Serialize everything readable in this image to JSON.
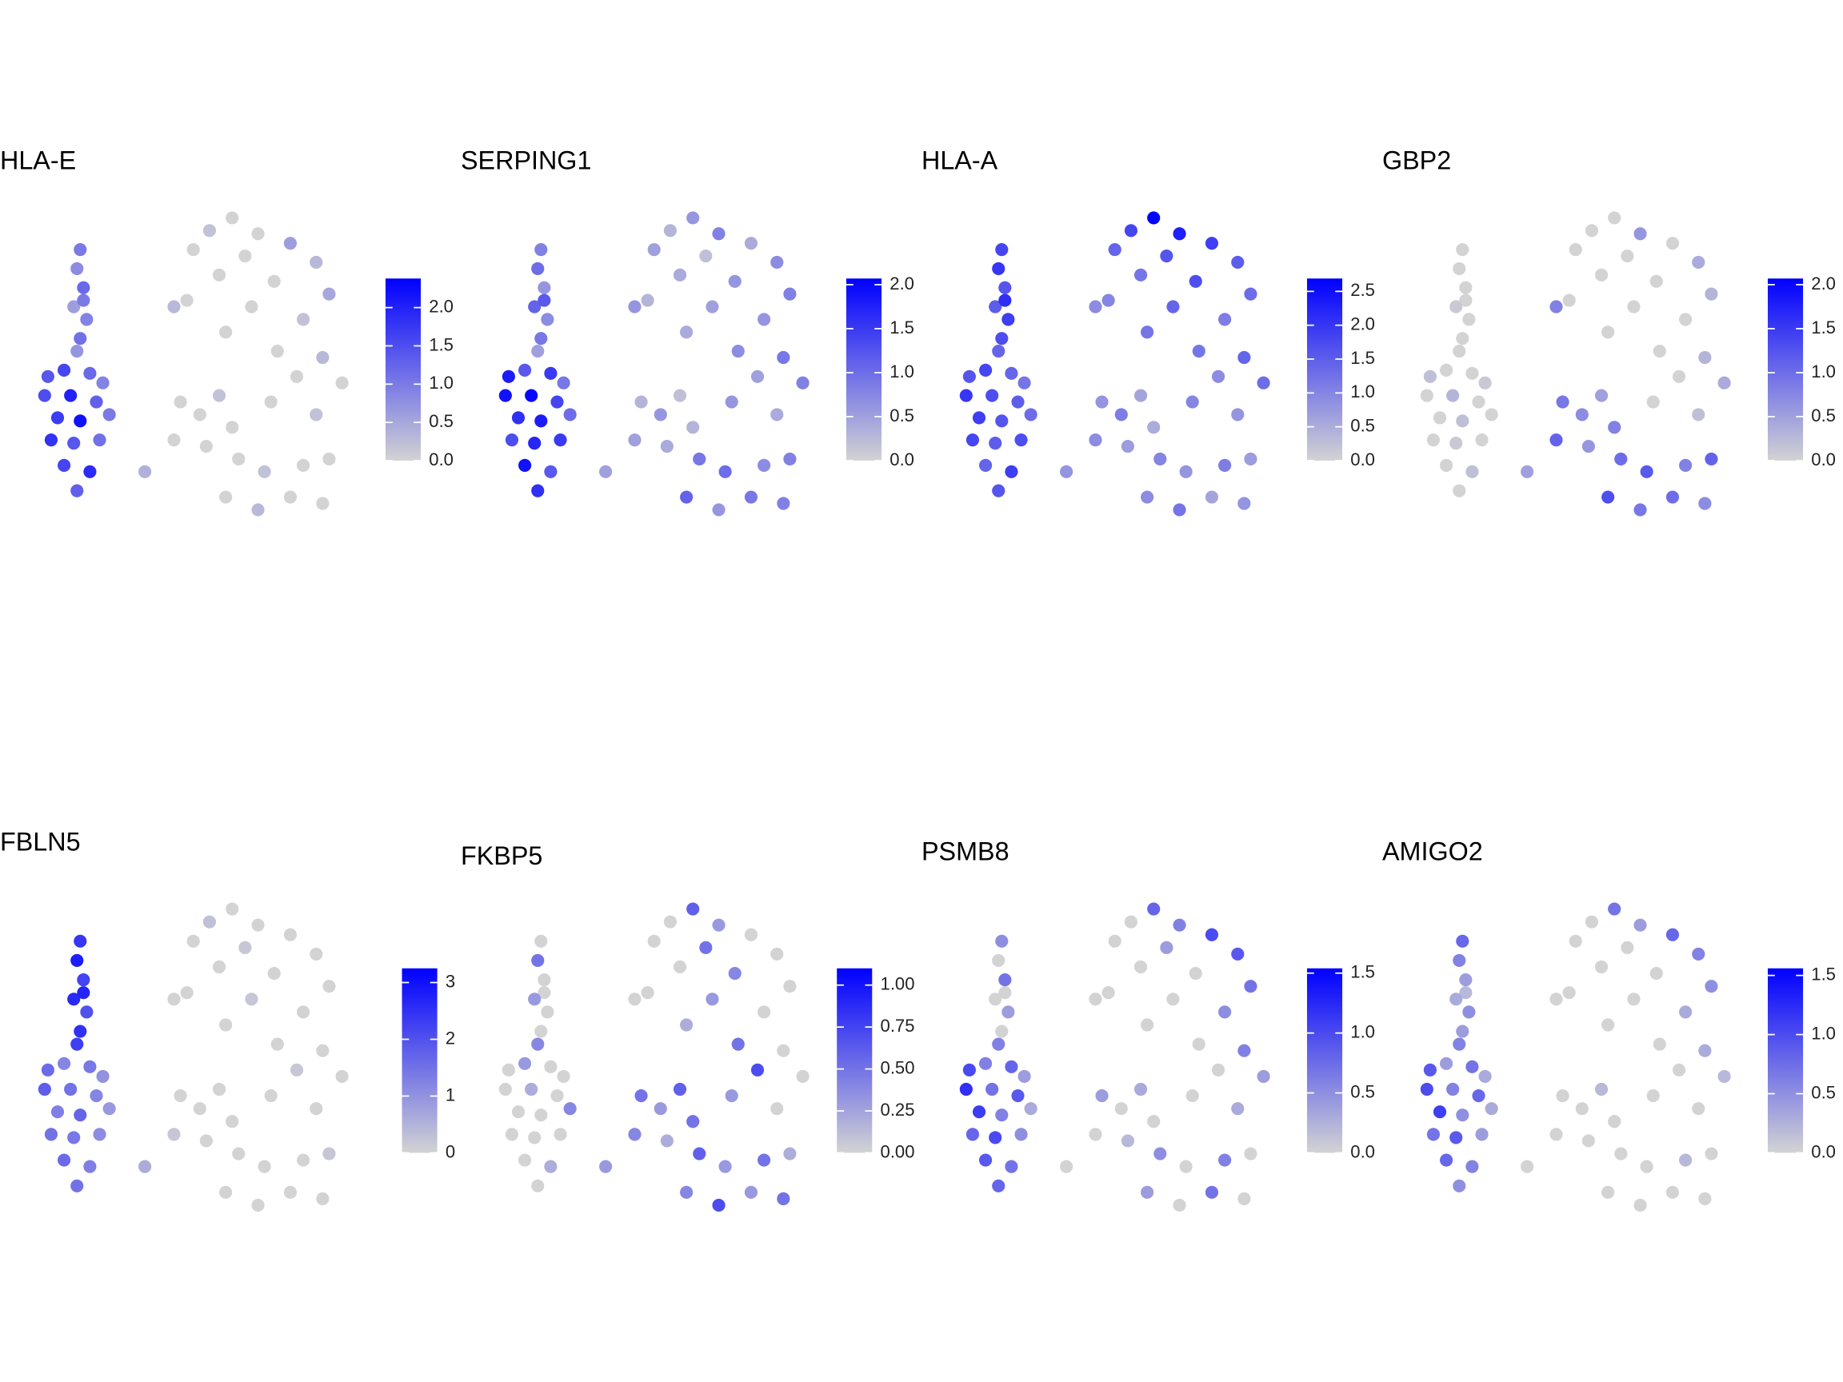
{
  "cells": {
    "x": [
      15,
      14,
      16,
      13,
      17,
      15,
      14,
      16,
      5,
      10,
      18,
      22,
      4,
      12,
      20,
      8,
      15,
      24,
      6,
      13,
      21,
      10,
      18,
      14,
      35,
      44,
      62,
      55,
      70,
      80,
      50,
      66,
      88,
      58,
      75,
      92,
      48,
      68,
      84,
      60,
      76,
      90,
      82,
      96,
      74,
      88,
      46,
      52,
      58,
      44,
      54,
      62,
      64,
      72,
      84,
      92,
      60,
      70,
      80,
      90
    ],
    "y": [
      88,
      82,
      76,
      70,
      66,
      60,
      56,
      72,
      48,
      50,
      49,
      46,
      42,
      42,
      40,
      35,
      34,
      36,
      28,
      27,
      28,
      20,
      18,
      12,
      18,
      70,
      98,
      94,
      93,
      90,
      88,
      86,
      84,
      80,
      78,
      74,
      72,
      70,
      66,
      62,
      56,
      54,
      48,
      46,
      40,
      36,
      40,
      36,
      42,
      28,
      26,
      32,
      22,
      18,
      20,
      22,
      10,
      6,
      10,
      8
    ]
  },
  "low_color": "#d3d3d3",
  "high_color": "#0000ff",
  "chart_data": [
    {
      "type": "scatter",
      "title": "HLA-E",
      "colorbar_lim": [
        0,
        2.38
      ],
      "colorbar_ticks": [
        {
          "value": 0,
          "label": "0.0"
        },
        {
          "value": 0.5,
          "label": "0.5"
        },
        {
          "value": 1,
          "label": "1.0"
        },
        {
          "value": 1.5,
          "label": "1.5"
        },
        {
          "value": 2,
          "label": "2.0"
        }
      ],
      "values": [
        1.0,
        0.8,
        1.2,
        0.6,
        0.9,
        1.1,
        0.7,
        1.0,
        1.4,
        1.6,
        1.2,
        0.9,
        1.5,
        2.0,
        1.3,
        1.7,
        2.2,
        1.0,
        1.8,
        1.4,
        1.1,
        1.6,
        1.9,
        1.3,
        0.4,
        0.3,
        0,
        0.2,
        0,
        0.6,
        0,
        0,
        0.3,
        0,
        0,
        0.5,
        0,
        0,
        0.2,
        0,
        0,
        0.3,
        0,
        0,
        0,
        0.2,
        0,
        0,
        0.2,
        0,
        0,
        0,
        0,
        0.2,
        0,
        0,
        0,
        0.3,
        0,
        0
      ]
    },
    {
      "type": "scatter",
      "title": "SERPING1",
      "colorbar_lim": [
        0,
        2.07
      ],
      "colorbar_ticks": [
        {
          "value": 0,
          "label": "0.0"
        },
        {
          "value": 0.5,
          "label": "0.5"
        },
        {
          "value": 1,
          "label": "1.0"
        },
        {
          "value": 1.5,
          "label": "1.5"
        },
        {
          "value": 2,
          "label": "2.0"
        }
      ],
      "values": [
        0.8,
        1.0,
        0.6,
        1.1,
        0.7,
        0.9,
        0.5,
        1.2,
        1.8,
        1.2,
        1.5,
        0.9,
        1.9,
        2.0,
        1.4,
        1.6,
        1.8,
        1.0,
        1.3,
        1.7,
        1.5,
        1.9,
        1.2,
        1.6,
        0.5,
        0.6,
        0.6,
        0.3,
        0.8,
        0.4,
        0.5,
        0.2,
        0.7,
        0.4,
        0.6,
        0.8,
        0.3,
        0.5,
        0.6,
        0.4,
        0.7,
        0.9,
        0.5,
        0.8,
        0.6,
        0.4,
        0.3,
        0.6,
        0.2,
        0.5,
        0.4,
        0.3,
        0.9,
        1.0,
        0.7,
        0.8,
        1.1,
        0.6,
        0.9,
        0.8
      ]
    },
    {
      "type": "scatter",
      "title": "HLA-A",
      "colorbar_lim": [
        0,
        2.69
      ],
      "colorbar_ticks": [
        {
          "value": 0,
          "label": "0.0"
        },
        {
          "value": 0.5,
          "label": "0.5"
        },
        {
          "value": 1,
          "label": "1.0"
        },
        {
          "value": 1.5,
          "label": "1.5"
        },
        {
          "value": 2,
          "label": "2.0"
        },
        {
          "value": 2.5,
          "label": "2.5"
        }
      ],
      "values": [
        1.8,
        2.0,
        1.6,
        1.5,
        1.9,
        1.7,
        1.4,
        2.1,
        1.6,
        1.8,
        1.4,
        1.2,
        2.0,
        1.7,
        1.5,
        1.9,
        1.6,
        1.3,
        1.8,
        1.5,
        1.7,
        1.4,
        1.9,
        1.6,
        0.8,
        0.9,
        2.7,
        1.8,
        2.3,
        1.9,
        1.4,
        1.6,
        1.5,
        1.2,
        1.7,
        1.3,
        1.0,
        1.4,
        1.1,
        1.2,
        1.2,
        1.4,
        0.9,
        1.3,
        1.0,
        0.8,
        0.8,
        1.1,
        0.6,
        0.9,
        0.7,
        0.5,
        1.0,
        0.8,
        1.1,
        0.7,
        0.9,
        1.2,
        0.6,
        0.8
      ]
    },
    {
      "type": "scatter",
      "title": "GBP2",
      "colorbar_lim": [
        0,
        2.07
      ],
      "colorbar_ticks": [
        {
          "value": 0,
          "label": "0.0"
        },
        {
          "value": 0.5,
          "label": "0.5"
        },
        {
          "value": 1,
          "label": "1.0"
        },
        {
          "value": 1.5,
          "label": "1.5"
        },
        {
          "value": 2,
          "label": "2.0"
        }
      ],
      "values": [
        0,
        0,
        0,
        0.1,
        0,
        0,
        0,
        0,
        0.2,
        0,
        0,
        0.1,
        0,
        0.3,
        0,
        0,
        0.2,
        0,
        0,
        0.1,
        0,
        0,
        0.2,
        0,
        0.5,
        0.8,
        0,
        0,
        0.6,
        0,
        0,
        0,
        0.4,
        0,
        0,
        0.3,
        0,
        0,
        0,
        0,
        0,
        0.3,
        0,
        0.4,
        0,
        0.2,
        0.9,
        0.7,
        0.5,
        1.1,
        0.6,
        0.8,
        1.0,
        1.2,
        0.8,
        1.1,
        1.3,
        0.9,
        1.0,
        0.7
      ]
    },
    {
      "type": "scatter",
      "title": "FBLN5",
      "colorbar_lim": [
        0,
        3.25
      ],
      "colorbar_ticks": [
        0,
        1,
        2,
        3
      ],
      "values": [
        2.4,
        2.8,
        2.2,
        2.6,
        2.0,
        2.5,
        2.3,
        2.7,
        1.6,
        1.2,
        1.4,
        1.0,
        1.8,
        1.5,
        1.2,
        1.3,
        1.7,
        0.9,
        1.5,
        1.4,
        1.1,
        1.6,
        1.3,
        1.5,
        0.6,
        0,
        0,
        0.3,
        0,
        0,
        0,
        0.2,
        0,
        0,
        0,
        0,
        0,
        0.2,
        0,
        0,
        0,
        0,
        0.2,
        0,
        0,
        0,
        0,
        0,
        0,
        0.2,
        0,
        0,
        0,
        0,
        0,
        0.2,
        0,
        0,
        0,
        0
      ]
    },
    {
      "type": "scatter",
      "title": "FKBP5",
      "colorbar_lim": [
        0,
        1.1
      ],
      "colorbar_ticks": [
        {
          "value": 0,
          "label": "0.00"
        },
        {
          "value": 0.25,
          "label": "0.25"
        },
        {
          "value": 0.5,
          "label": "0.50"
        },
        {
          "value": 0.75,
          "label": "0.75"
        },
        {
          "value": 1,
          "label": "1.00"
        }
      ],
      "values": [
        0,
        0.5,
        0,
        0.3,
        0,
        0,
        0.4,
        0,
        0,
        0.3,
        0,
        0,
        0,
        0.2,
        0,
        0,
        0,
        0.4,
        0,
        0,
        0,
        0,
        0.2,
        0,
        0.3,
        0,
        0.6,
        0,
        0.3,
        0,
        0,
        0.5,
        0,
        0,
        0.4,
        0,
        0,
        0.3,
        0,
        0.2,
        0.5,
        0,
        0.7,
        0,
        0.3,
        0,
        0.5,
        0.3,
        0.6,
        0.4,
        0.2,
        0.5,
        0.6,
        0.3,
        0.5,
        0.2,
        0.4,
        0.7,
        0.3,
        0.5
      ]
    },
    {
      "type": "scatter",
      "title": "PSMB8",
      "colorbar_lim": [
        0,
        1.54
      ],
      "colorbar_ticks": [
        {
          "value": 0,
          "label": "0.0"
        },
        {
          "value": 0.5,
          "label": "0.5"
        },
        {
          "value": 1,
          "label": "1.0"
        },
        {
          "value": 1.5,
          "label": "1.5"
        }
      ],
      "values": [
        0.5,
        0,
        0.7,
        0,
        0.4,
        0,
        0.6,
        0,
        1.0,
        0.6,
        0.8,
        0.4,
        1.2,
        0.7,
        0.9,
        1.1,
        0.6,
        0.3,
        0.8,
        1.0,
        0.5,
        0.9,
        0.7,
        0.8,
        0,
        0,
        0.8,
        0,
        0.6,
        1.0,
        0,
        0.4,
        0.9,
        0,
        0,
        0.7,
        0,
        0,
        0.5,
        0,
        0,
        0.6,
        0,
        0.4,
        0,
        0.3,
        0.4,
        0,
        0.3,
        0,
        0.2,
        0,
        0.5,
        0,
        0.6,
        0,
        0.4,
        0,
        0.7,
        0
      ]
    },
    {
      "type": "scatter",
      "title": "AMIGO2",
      "colorbar_lim": [
        0,
        1.56
      ],
      "colorbar_ticks": [
        {
          "value": 0,
          "label": "0.0"
        },
        {
          "value": 0.5,
          "label": "0.5"
        },
        {
          "value": 1,
          "label": "1.0"
        },
        {
          "value": 1.5,
          "label": "1.5"
        }
      ],
      "values": [
        0.8,
        0.6,
        0.4,
        0.3,
        0.5,
        0.4,
        0.6,
        0.2,
        0.9,
        0.4,
        0.7,
        0.3,
        1.0,
        0.6,
        0.8,
        1.1,
        0.5,
        0.3,
        0.7,
        0.9,
        0.4,
        0.8,
        0.6,
        0.5,
        0,
        0,
        0.7,
        0,
        0.4,
        0.8,
        0,
        0,
        0.6,
        0,
        0,
        0.5,
        0,
        0,
        0.3,
        0,
        0,
        0.3,
        0,
        0.2,
        0,
        0,
        0,
        0,
        0.2,
        0,
        0,
        0,
        0,
        0,
        0.2,
        0,
        0,
        0,
        0,
        0
      ]
    }
  ]
}
